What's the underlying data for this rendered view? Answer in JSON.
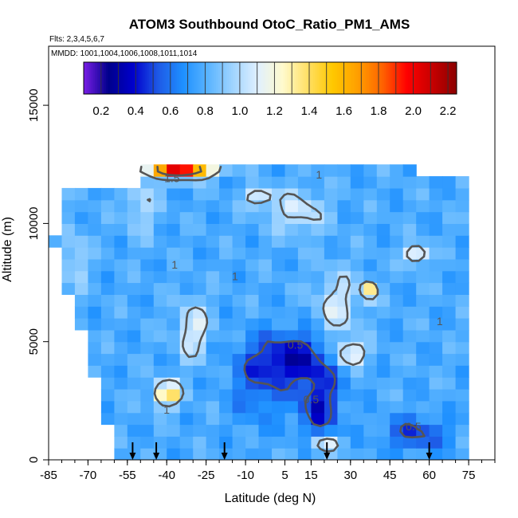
{
  "chart_data": {
    "type": "heatmap",
    "title": "ATOM3 Southbound OtoC_Ratio_PM1_AMS",
    "flights_label": "Flts: 2,3,4,5,6,7",
    "dates_label": "MMDD: 1001,1004,1006,1008,1011,1014",
    "xlabel": "Latitude (deg N)",
    "ylabel": "Altitude (m)",
    "xlim": [
      -85,
      85
    ],
    "ylim": [
      0,
      17500
    ],
    "x_ticks": [
      -85,
      -70,
      -55,
      -40,
      -25,
      -10,
      5,
      15,
      30,
      45,
      60,
      75
    ],
    "y_ticks": [
      0,
      5000,
      10000,
      15000
    ],
    "y_tick_labels": [
      "0",
      "5000",
      "10000",
      "15000"
    ],
    "colorbar": {
      "min": 0.1,
      "max": 2.25,
      "ticks": [
        0.2,
        0.4,
        0.6,
        0.8,
        1.0,
        1.2,
        1.4,
        1.6,
        1.8,
        2.0,
        2.2
      ],
      "tick_labels": [
        "0.2",
        "0.4",
        "0.6",
        "0.8",
        "1.0",
        "1.2",
        "1.4",
        "1.6",
        "1.8",
        "2.0",
        "2.2"
      ],
      "colors": [
        "#7a1ee6",
        "#00008b",
        "#0000cd",
        "#1e5ae6",
        "#1e90ff",
        "#5ab4ff",
        "#a0d4ff",
        "#e0f0ff",
        "#fffacd",
        "#ffe066",
        "#ffc800",
        "#ffa000",
        "#ff6400",
        "#ff0000",
        "#c80000",
        "#8b0000"
      ]
    },
    "contour_levels": [
      0.5,
      1,
      1.5
    ],
    "contour_labels": [
      {
        "text": "1.5",
        "lat": -38,
        "alt": 11750
      },
      {
        "text": "1",
        "lat": 18,
        "alt": 11900
      },
      {
        "text": "1",
        "lat": -37,
        "alt": 8100
      },
      {
        "text": "1",
        "lat": -14,
        "alt": 7600
      },
      {
        "text": "0.5",
        "lat": 9,
        "alt": 4700
      },
      {
        "text": "0.5",
        "lat": 15,
        "alt": 2400
      },
      {
        "text": "1",
        "lat": -40,
        "alt": 1950
      },
      {
        "text": "0.5",
        "lat": 54,
        "alt": 1250
      },
      {
        "text": "1",
        "lat": 64,
        "alt": 5700
      }
    ],
    "flight_marker_latitudes": [
      -53,
      -44,
      -18,
      21,
      60
    ],
    "latitude_bins": [
      -85,
      -80,
      -75,
      -70,
      -65,
      -60,
      -55,
      -50,
      -45,
      -40,
      -35,
      -30,
      -25,
      -20,
      -15,
      -10,
      -5,
      0,
      5,
      10,
      15,
      20,
      25,
      30,
      35,
      40,
      45,
      50,
      55,
      60,
      65,
      70
    ],
    "altitude_bins": [
      0,
      500,
      1000,
      1500,
      2000,
      2500,
      3000,
      3500,
      4000,
      4500,
      5000,
      5500,
      6000,
      6500,
      7000,
      7500,
      8000,
      8500,
      9000,
      9500,
      10000,
      10500,
      11000,
      11500,
      12000,
      12500
    ],
    "grid": false,
    "legend": "colorbar-top-inside"
  }
}
